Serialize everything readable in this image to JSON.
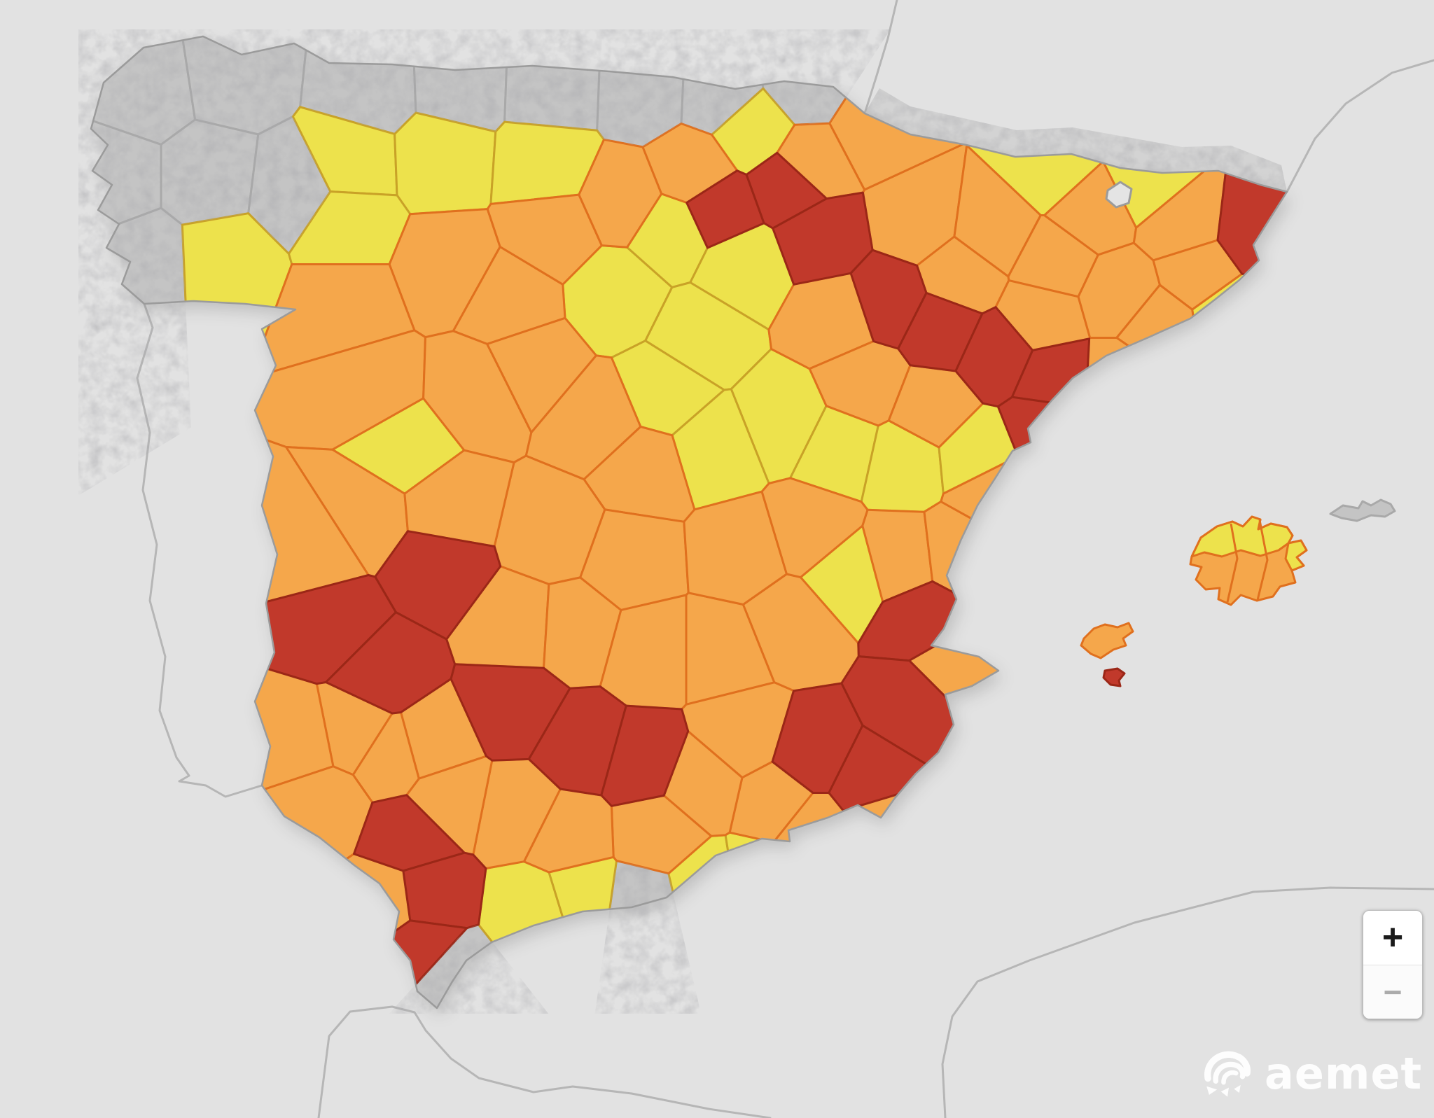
{
  "branding": {
    "logo_text": "aemet"
  },
  "controls": {
    "zoom_in_label": "+",
    "zoom_out_label": "−"
  },
  "palette": {
    "yellow": "#EDE24C",
    "orange": "#F5A74B",
    "red": "#C1392B",
    "none": "#C4C4C4",
    "neutral": "#E4E4E4",
    "sea": "#E2E2E2",
    "border_yellow": "#C9A227",
    "border_orange": "#E0701E",
    "border_red": "#9B2717",
    "border_none": "#A9A9A9",
    "coast": "#9B9B9B",
    "neighbor_line": "#B6B6B6",
    "zoom_plus": "#1A1A1A",
    "zoom_minus": "#ABABAB",
    "logo_white": "#FFFFFF"
  },
  "map": {
    "kind": "weather-warning-choropleth",
    "country": "Spain",
    "zones": [
      {
        "n": "a-coruna-norte",
        "l": "none",
        "s": [
          205,
          125
        ]
      },
      {
        "n": "lugo-costa",
        "l": "none",
        "s": [
          335,
          105
        ]
      },
      {
        "n": "a-coruna-oeste",
        "l": "none",
        "s": [
          160,
          255
        ]
      },
      {
        "n": "lugo-centro",
        "l": "none",
        "s": [
          300,
          255
        ]
      },
      {
        "n": "pontevedra",
        "l": "none",
        "s": [
          205,
          375
        ]
      },
      {
        "n": "lugo-este",
        "l": "none",
        "s": [
          420,
          270
        ]
      },
      {
        "n": "asturias-oeste",
        "l": "none",
        "s": [
          530,
          125
        ]
      },
      {
        "n": "asturias-centro",
        "l": "none",
        "s": [
          655,
          120
        ]
      },
      {
        "n": "asturias-este",
        "l": "none",
        "s": [
          790,
          125
        ]
      },
      {
        "n": "cantabria-oeste",
        "l": "none",
        "s": [
          920,
          130
        ]
      },
      {
        "n": "cantabria-este",
        "l": "none",
        "s": [
          1030,
          135
        ]
      },
      {
        "n": "gipuzkoa-costa",
        "l": "none",
        "s": [
          1150,
          120
        ]
      },
      {
        "n": "costa-tropical-gris",
        "l": "none",
        "s": [
          915,
          1292
        ]
      },
      {
        "n": "estrecho",
        "l": "none",
        "s": [
          644,
          1395
        ]
      },
      {
        "n": "ourense",
        "l": "yellow",
        "s": [
          320,
          370
        ]
      },
      {
        "n": "leon-noroeste",
        "l": "yellow",
        "s": [
          500,
          230
        ]
      },
      {
        "n": "palencia-norte",
        "l": "yellow",
        "s": [
          630,
          225
        ]
      },
      {
        "n": "burgos-norte",
        "l": "yellow",
        "s": [
          780,
          235
        ]
      },
      {
        "n": "zamora",
        "l": "yellow",
        "s": [
          495,
          320
        ]
      },
      {
        "n": "soria-oeste",
        "l": "yellow",
        "s": [
          880,
          420
        ]
      },
      {
        "n": "burgos-sur",
        "l": "yellow",
        "s": [
          960,
          330
        ]
      },
      {
        "n": "rioja-sur",
        "l": "yellow",
        "s": [
          1060,
          380
        ]
      },
      {
        "n": "soria-este",
        "l": "yellow",
        "s": [
          1000,
          480
        ]
      },
      {
        "n": "guadalajara-norte",
        "l": "yellow",
        "s": [
          950,
          560
        ]
      },
      {
        "n": "guadalajara-sur",
        "l": "yellow",
        "s": [
          1020,
          640
        ]
      },
      {
        "n": "cuenca-noreste",
        "l": "yellow",
        "s": [
          1120,
          600
        ]
      },
      {
        "n": "teruel-oeste",
        "l": "yellow",
        "s": [
          1200,
          640
        ]
      },
      {
        "n": "teruel-este",
        "l": "yellow",
        "s": [
          1290,
          660
        ]
      },
      {
        "n": "maestrazgo",
        "l": "yellow",
        "s": [
          1395,
          650
        ]
      },
      {
        "n": "utiel-requena",
        "l": "yellow",
        "s": [
          1210,
          820
        ]
      },
      {
        "n": "alava-sur",
        "l": "yellow",
        "s": [
          1075,
          185
        ]
      },
      {
        "n": "pirineo-aran",
        "l": "yellow",
        "s": [
          1505,
          240
        ]
      },
      {
        "n": "cerdanya",
        "l": "yellow",
        "s": [
          1640,
          260
        ]
      },
      {
        "n": "costa-brava-sur",
        "l": "yellow",
        "s": [
          1755,
          450
        ]
      },
      {
        "n": "gredos",
        "l": "yellow",
        "s": [
          578,
          640
        ]
      },
      {
        "n": "costa-malaga-oeste",
        "l": "yellow",
        "s": [
          765,
          1300
        ]
      },
      {
        "n": "costa-malaga-este",
        "l": "yellow",
        "s": [
          830,
          1280
        ]
      },
      {
        "n": "costa-granada",
        "l": "yellow",
        "s": [
          1010,
          1270
        ]
      },
      {
        "n": "costa-almeria-oeste",
        "l": "yellow",
        "s": [
          1085,
          1258
        ]
      },
      {
        "n": "leon-sur",
        "l": "orange",
        "s": [
          640,
          380
        ]
      },
      {
        "n": "valladolid",
        "l": "orange",
        "s": [
          730,
          430
        ]
      },
      {
        "n": "palencia-sur",
        "l": "orange",
        "s": [
          790,
          330
        ]
      },
      {
        "n": "burgos-centro",
        "l": "orange",
        "s": [
          890,
          285
        ]
      },
      {
        "n": "miranda-de-ebro",
        "l": "orange",
        "s": [
          990,
          245
        ]
      },
      {
        "n": "sayago",
        "l": "orange",
        "s": [
          495,
          435
        ]
      },
      {
        "n": "salamanca",
        "l": "orange",
        "s": [
          530,
          555
        ]
      },
      {
        "n": "avila",
        "l": "orange",
        "s": [
          680,
          560
        ]
      },
      {
        "n": "segovia-sur",
        "l": "orange",
        "s": [
          760,
          520
        ]
      },
      {
        "n": "madrid-norte",
        "l": "orange",
        "s": [
          855,
          600
        ]
      },
      {
        "n": "madrid-sur",
        "l": "orange",
        "s": [
          920,
          670
        ]
      },
      {
        "n": "toledo-oeste",
        "l": "orange",
        "s": [
          790,
          760
        ]
      },
      {
        "n": "toledo-este",
        "l": "orange",
        "s": [
          900,
          800
        ]
      },
      {
        "n": "caceres-norte",
        "l": "orange",
        "s": [
          520,
          735
        ]
      },
      {
        "n": "caceres-noreste",
        "l": "orange",
        "s": [
          640,
          725
        ]
      },
      {
        "n": "vegas-del-guadiana",
        "l": "orange",
        "s": [
          450,
          780
        ]
      },
      {
        "n": "badajoz-sur",
        "l": "orange",
        "s": [
          505,
          1045
        ]
      },
      {
        "n": "tierra-de-barros",
        "l": "orange",
        "s": [
          615,
          1065
        ]
      },
      {
        "n": "la-serena",
        "l": "orange",
        "s": [
          740,
          895
        ]
      },
      {
        "n": "ciudad-real-oeste",
        "l": "orange",
        "s": [
          820,
          900
        ]
      },
      {
        "n": "ciudad-real-este",
        "l": "orange",
        "s": [
          930,
          930
        ]
      },
      {
        "n": "albacete-oeste",
        "l": "orange",
        "s": [
          1030,
          930
        ]
      },
      {
        "n": "albacete-este",
        "l": "orange",
        "s": [
          1130,
          890
        ]
      },
      {
        "n": "cuenca-sur",
        "l": "orange",
        "s": [
          1060,
          790
        ]
      },
      {
        "n": "cuenca-este",
        "l": "orange",
        "s": [
          1160,
          760
        ]
      },
      {
        "n": "valencia-interior",
        "l": "orange",
        "s": [
          1285,
          800
        ]
      },
      {
        "n": "la-plana",
        "l": "orange",
        "s": [
          1370,
          790
        ]
      },
      {
        "n": "castellon-costa",
        "l": "orange",
        "s": [
          1420,
          700
        ]
      },
      {
        "n": "marina-alta",
        "l": "orange",
        "s": [
          1360,
          955
        ]
      },
      {
        "n": "costa-cartagena",
        "l": "orange",
        "s": [
          1255,
          1170
        ]
      },
      {
        "n": "almeria-levante",
        "l": "orange",
        "s": [
          1160,
          1185
        ]
      },
      {
        "n": "almeria-interior",
        "l": "orange",
        "s": [
          1110,
          1145
        ]
      },
      {
        "n": "granada-norte",
        "l": "orange",
        "s": [
          1060,
          1050
        ]
      },
      {
        "n": "granada-altiplano",
        "l": "orange",
        "s": [
          1000,
          1120
        ]
      },
      {
        "n": "granada-sur",
        "l": "orange",
        "s": [
          940,
          1190
        ]
      },
      {
        "n": "antequera",
        "l": "orange",
        "s": [
          810,
          1195
        ]
      },
      {
        "n": "cordoba-sur",
        "l": "orange",
        "s": [
          740,
          1160
        ]
      },
      {
        "n": "sevilla-campina",
        "l": "orange",
        "s": [
          640,
          1140
        ]
      },
      {
        "n": "sevilla-norte",
        "l": "orange",
        "s": [
          560,
          1080
        ]
      },
      {
        "n": "huelva-norte",
        "l": "orange",
        "s": [
          430,
          1060
        ]
      },
      {
        "n": "huelva-costa",
        "l": "orange",
        "s": [
          460,
          1150
        ]
      },
      {
        "n": "costa-cadiz-oeste",
        "l": "orange",
        "s": [
          553,
          1288
        ]
      },
      {
        "n": "zaragoza-oeste",
        "l": "orange",
        "s": [
          1195,
          455
        ]
      },
      {
        "n": "zaragoza-sur",
        "l": "orange",
        "s": [
          1235,
          548
        ]
      },
      {
        "n": "jiloca",
        "l": "orange",
        "s": [
          1330,
          585
        ]
      },
      {
        "n": "huesca-oeste",
        "l": "orange",
        "s": [
          1310,
          315
        ]
      },
      {
        "n": "huesca-este",
        "l": "orange",
        "s": [
          1420,
          330
        ]
      },
      {
        "n": "somontano",
        "l": "orange",
        "s": [
          1372,
          395
        ]
      },
      {
        "n": "lleida-norte",
        "l": "orange",
        "s": [
          1505,
          375
        ]
      },
      {
        "n": "lleida-sur",
        "l": "orange",
        "s": [
          1487,
          452
        ]
      },
      {
        "n": "barcelona-interior",
        "l": "orange",
        "s": [
          1600,
          420
        ]
      },
      {
        "n": "barcelona-costa",
        "l": "orange",
        "s": [
          1655,
          465
        ]
      },
      {
        "n": "tarragona-costa",
        "l": "orange",
        "s": [
          1600,
          545
        ]
      },
      {
        "n": "pirineo-central",
        "l": "orange",
        "s": [
          1560,
          300
        ]
      },
      {
        "n": "ripolles",
        "l": "orange",
        "s": [
          1690,
          320
        ]
      },
      {
        "n": "girona-interior",
        "l": "orange",
        "s": [
          1712,
          390
        ]
      },
      {
        "n": "navarra-pirineo",
        "l": "orange",
        "s": [
          1250,
          185
        ]
      },
      {
        "n": "navarra-noroeste",
        "l": "orange",
        "s": [
          1155,
          235
        ]
      },
      {
        "n": "rioja",
        "l": "red",
        "s": [
          1025,
          300
        ]
      },
      {
        "n": "navarra-norte",
        "l": "red",
        "s": [
          1130,
          262
        ]
      },
      {
        "n": "navarra-sur",
        "l": "red",
        "s": [
          1172,
          338
        ]
      },
      {
        "n": "ebro-1",
        "l": "red",
        "s": [
          1270,
          430
        ]
      },
      {
        "n": "ebro-2",
        "l": "red",
        "s": [
          1345,
          468
        ]
      },
      {
        "n": "ebro-3",
        "l": "red",
        "s": [
          1425,
          505
        ]
      },
      {
        "n": "ebro-4",
        "l": "red",
        "s": [
          1505,
          540
        ]
      },
      {
        "n": "ebro-5",
        "l": "red",
        "s": [
          1495,
          610
        ]
      },
      {
        "n": "emporda",
        "l": "red",
        "s": [
          1792,
          332
        ]
      },
      {
        "n": "jucar-valencia",
        "l": "red",
        "s": [
          1320,
          885
        ]
      },
      {
        "n": "alicante-costa",
        "l": "red",
        "s": [
          1310,
          1005
        ]
      },
      {
        "n": "murcia-noroeste",
        "l": "red",
        "s": [
          1160,
          1080
        ]
      },
      {
        "n": "murcia-centro",
        "l": "red",
        "s": [
          1240,
          1120
        ]
      },
      {
        "n": "sierra-morena-oeste",
        "l": "red",
        "s": [
          735,
          1010
        ]
      },
      {
        "n": "sierra-morena-centro",
        "l": "red",
        "s": [
          830,
          1065
        ]
      },
      {
        "n": "sierra-morena-este",
        "l": "red",
        "s": [
          920,
          1090
        ]
      },
      {
        "n": "caceres-sur",
        "l": "red",
        "s": [
          625,
          810
        ]
      },
      {
        "n": "badajoz-oeste",
        "l": "red",
        "s": [
          480,
          895
        ]
      },
      {
        "n": "badajoz-centro",
        "l": "red",
        "s": [
          545,
          960
        ]
      },
      {
        "n": "cadiz-norte",
        "l": "red",
        "s": [
          585,
          1195
        ]
      },
      {
        "n": "cadiz-centro",
        "l": "red",
        "s": [
          610,
          1280
        ]
      },
      {
        "n": "cadiz-sur",
        "l": "red",
        "s": [
          600,
          1355
        ]
      }
    ],
    "islands": [
      {
        "n": "mallorca-main",
        "l": "orange"
      },
      {
        "n": "mallorca-north",
        "l": "yellow"
      },
      {
        "n": "mallorca-east-tip",
        "l": "yellow"
      },
      {
        "n": "menorca",
        "l": "none"
      },
      {
        "n": "ibiza",
        "l": "orange"
      },
      {
        "n": "formentera",
        "l": "red"
      },
      {
        "n": "andorra",
        "l": "neutral"
      }
    ]
  }
}
